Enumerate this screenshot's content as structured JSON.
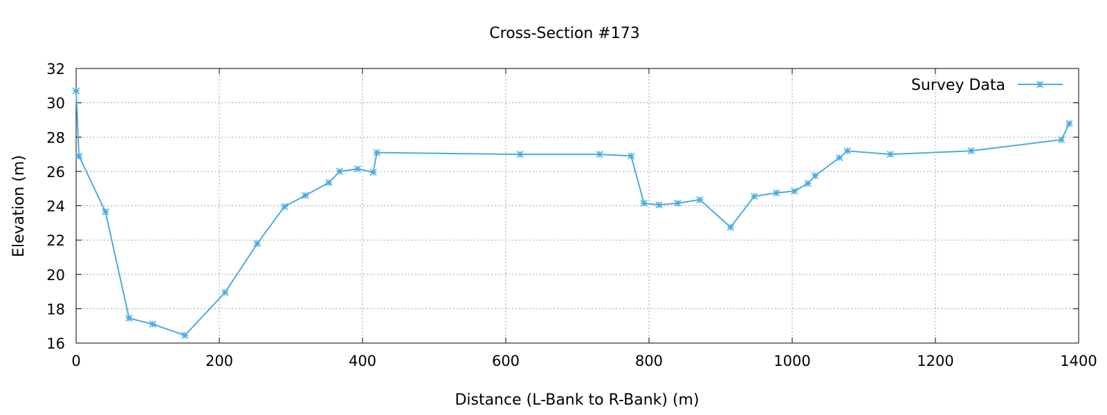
{
  "chart_data": {
    "type": "line",
    "title": "Cross-Section #173",
    "xlabel": "Distance (L-Bank to R-Bank) (m)",
    "ylabel": "Elevation (m)",
    "xlim": [
      0,
      1400
    ],
    "ylim": [
      16,
      32
    ],
    "xticks": [
      0,
      200,
      400,
      600,
      800,
      1000,
      1200,
      1400
    ],
    "yticks": [
      16,
      18,
      20,
      22,
      24,
      26,
      28,
      30,
      32
    ],
    "grid": true,
    "legend_position": "top-right",
    "series": [
      {
        "name": "Survey Data",
        "color": "#4aabdf",
        "marker": "asterisk",
        "x": [
          0,
          4,
          41,
          74,
          107,
          152,
          208,
          253,
          291,
          320,
          353,
          368,
          393,
          415,
          420,
          620,
          731,
          775,
          793,
          814,
          840,
          871,
          914,
          947,
          978,
          1003,
          1022,
          1032,
          1066,
          1077,
          1137,
          1250,
          1376,
          1387
        ],
        "y": [
          30.7,
          26.9,
          23.65,
          17.45,
          17.1,
          16.45,
          18.95,
          21.8,
          23.95,
          24.6,
          25.35,
          26.0,
          26.15,
          25.95,
          27.1,
          27.0,
          27.0,
          26.9,
          24.15,
          24.05,
          24.15,
          24.35,
          22.75,
          24.55,
          24.75,
          24.85,
          25.3,
          25.75,
          26.8,
          27.2,
          27.0,
          27.2,
          27.85,
          28.8
        ]
      }
    ]
  }
}
